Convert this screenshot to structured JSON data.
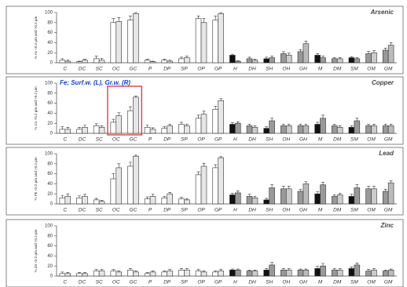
{
  "chart_data": [
    {
      "type": "bar",
      "title": "Arsenic",
      "y_label": "% As <0.2 µm and >0.2 µm",
      "categories": [
        "C",
        "DC",
        "SC",
        "OC",
        "GC",
        "P",
        "DP",
        "SP",
        "OP",
        "GP",
        "H",
        "DH",
        "SH",
        "OH",
        "GH",
        "M",
        "DM",
        "SM",
        "OM",
        "GM"
      ],
      "ylim": [
        0,
        100
      ],
      "yticks": [
        0,
        20,
        40,
        60,
        80,
        100
      ],
      "series": [
        {
          "colors": [
            "#ffffff",
            "#ffffff",
            "#ffffff",
            "#ffffff",
            "#ffffff",
            "#ffffff",
            "#ffffff",
            "#ffffff",
            "#ffffff",
            "#ffffff",
            "#111111",
            "#999999",
            "#111111",
            "#999999",
            "#999999",
            "#111111",
            "#999999",
            "#111111",
            "#999999",
            "#999999"
          ],
          "values": [
            5,
            2,
            8,
            80,
            85,
            5,
            5,
            8,
            88,
            85,
            15,
            8,
            8,
            18,
            22,
            15,
            8,
            10,
            18,
            25
          ],
          "errors": [
            3,
            1,
            5,
            8,
            8,
            2,
            2,
            3,
            5,
            8,
            2,
            3,
            3,
            4,
            4,
            3,
            2,
            2,
            5,
            4
          ]
        },
        {
          "colors": [
            "#e6e6e6",
            "#e6e6e6",
            "#e6e6e6",
            "#e6e6e6",
            "#e6e6e6",
            "#e6e6e6",
            "#e6e6e6",
            "#e6e6e6",
            "#e6e6e6",
            "#e6e6e6",
            "#999999",
            "#cccccc",
            "#999999",
            "#cccccc",
            "#bbbbbb",
            "#999999",
            "#cccccc",
            "#999999",
            "#cccccc",
            "#bbbbbb"
          ],
          "values": [
            3,
            5,
            5,
            82,
            98,
            2,
            3,
            10,
            80,
            98,
            3,
            5,
            10,
            15,
            38,
            10,
            8,
            8,
            20,
            35
          ],
          "errors": [
            2,
            2,
            4,
            8,
            2,
            1,
            2,
            3,
            8,
            2,
            1,
            2,
            3,
            4,
            5,
            3,
            2,
            2,
            4,
            5
          ]
        }
      ]
    },
    {
      "type": "bar",
      "title": "Copper",
      "y_label": "% Cu <0.2 µm and >0.2 µm",
      "annotation": "Fe; Surf.w. (L), Gr.w. (R)",
      "categories": [
        "C",
        "DC",
        "SC",
        "OC",
        "GC",
        "P",
        "DP",
        "SP",
        "OP",
        "GP",
        "H",
        "DH",
        "SH",
        "OH",
        "GH",
        "M",
        "DM",
        "SM",
        "OM",
        "GM"
      ],
      "ylim": [
        0,
        100
      ],
      "yticks": [
        0,
        20,
        40,
        60,
        80,
        100
      ],
      "series": [
        {
          "colors": [
            "#ffffff",
            "#ffffff",
            "#ffffff",
            "#ffffff",
            "#ffffff",
            "#ffffff",
            "#ffffff",
            "#ffffff",
            "#ffffff",
            "#ffffff",
            "#111111",
            "#999999",
            "#111111",
            "#999999",
            "#999999",
            "#111111",
            "#999999",
            "#111111",
            "#999999",
            "#999999"
          ],
          "values": [
            8,
            8,
            15,
            22,
            45,
            12,
            10,
            18,
            30,
            48,
            18,
            15,
            10,
            15,
            15,
            18,
            15,
            12,
            15,
            15
          ],
          "errors": [
            5,
            4,
            4,
            6,
            8,
            4,
            3,
            4,
            6,
            6,
            3,
            3,
            3,
            3,
            3,
            4,
            3,
            3,
            3,
            3
          ]
        },
        {
          "colors": [
            "#e6e6e6",
            "#e6e6e6",
            "#e6e6e6",
            "#e6e6e6",
            "#e6e6e6",
            "#e6e6e6",
            "#e6e6e6",
            "#e6e6e6",
            "#e6e6e6",
            "#e6e6e6",
            "#999999",
            "#cccccc",
            "#999999",
            "#cccccc",
            "#bbbbbb",
            "#999999",
            "#cccccc",
            "#999999",
            "#cccccc",
            "#bbbbbb"
          ],
          "values": [
            8,
            12,
            12,
            35,
            72,
            8,
            15,
            15,
            38,
            65,
            20,
            12,
            25,
            15,
            15,
            30,
            12,
            25,
            15,
            15
          ],
          "errors": [
            4,
            4,
            3,
            6,
            2,
            3,
            3,
            3,
            6,
            4,
            3,
            3,
            5,
            3,
            3,
            6,
            3,
            5,
            3,
            3
          ]
        }
      ]
    },
    {
      "type": "bar",
      "title": "Lead",
      "y_label": "% Pb <0.2 µm and >0.2 µm",
      "categories": [
        "C",
        "DC",
        "SC",
        "OC",
        "GC",
        "P",
        "DP",
        "SP",
        "OP",
        "GP",
        "H",
        "DH",
        "SH",
        "OH",
        "GH",
        "M",
        "DM",
        "SM",
        "OM",
        "GM"
      ],
      "ylim": [
        0,
        100
      ],
      "yticks": [
        0,
        20,
        40,
        60,
        80,
        100
      ],
      "series": [
        {
          "colors": [
            "#ffffff",
            "#ffffff",
            "#ffffff",
            "#ffffff",
            "#ffffff",
            "#ffffff",
            "#ffffff",
            "#ffffff",
            "#ffffff",
            "#ffffff",
            "#111111",
            "#999999",
            "#111111",
            "#999999",
            "#999999",
            "#111111",
            "#999999",
            "#111111",
            "#999999",
            "#999999"
          ],
          "values": [
            12,
            12,
            8,
            50,
            75,
            10,
            12,
            10,
            58,
            72,
            18,
            15,
            8,
            30,
            25,
            20,
            15,
            15,
            30,
            25
          ],
          "errors": [
            5,
            4,
            3,
            10,
            8,
            4,
            3,
            3,
            6,
            6,
            3,
            4,
            3,
            5,
            4,
            4,
            3,
            4,
            5,
            4
          ]
        },
        {
          "colors": [
            "#e6e6e6",
            "#e6e6e6",
            "#e6e6e6",
            "#e6e6e6",
            "#e6e6e6",
            "#e6e6e6",
            "#e6e6e6",
            "#e6e6e6",
            "#e6e6e6",
            "#e6e6e6",
            "#999999",
            "#cccccc",
            "#999999",
            "#cccccc",
            "#bbbbbb",
            "#999999",
            "#cccccc",
            "#999999",
            "#cccccc",
            "#bbbbbb"
          ],
          "values": [
            15,
            15,
            5,
            72,
            95,
            15,
            20,
            8,
            75,
            92,
            22,
            12,
            32,
            30,
            40,
            38,
            18,
            32,
            30,
            42
          ],
          "errors": [
            5,
            4,
            2,
            8,
            2,
            4,
            3,
            2,
            6,
            2,
            4,
            3,
            6,
            5,
            4,
            5,
            3,
            6,
            5,
            4
          ]
        }
      ]
    },
    {
      "type": "bar",
      "title": "Zinc",
      "y_label": "% Zn <0.2 µm and >0.2 µm",
      "categories": [
        "C",
        "DC",
        "SC",
        "OC",
        "GC",
        "P",
        "DP",
        "SP",
        "OP",
        "GP",
        "H",
        "DH",
        "SH",
        "OH",
        "GH",
        "M",
        "DM",
        "SM",
        "OM",
        "GM"
      ],
      "ylim": [
        0,
        100
      ],
      "yticks": [
        0,
        20,
        40,
        60,
        80,
        100
      ],
      "series": [
        {
          "colors": [
            "#ffffff",
            "#ffffff",
            "#ffffff",
            "#ffffff",
            "#ffffff",
            "#ffffff",
            "#ffffff",
            "#ffffff",
            "#ffffff",
            "#ffffff",
            "#111111",
            "#999999",
            "#111111",
            "#999999",
            "#999999",
            "#111111",
            "#999999",
            "#111111",
            "#999999",
            "#999999"
          ],
          "values": [
            5,
            5,
            10,
            10,
            12,
            5,
            8,
            12,
            10,
            8,
            12,
            10,
            12,
            12,
            12,
            15,
            12,
            15,
            10,
            10
          ],
          "errors": [
            3,
            2,
            3,
            3,
            3,
            2,
            2,
            3,
            3,
            2,
            2,
            2,
            3,
            3,
            2,
            4,
            3,
            3,
            3,
            2
          ]
        },
        {
          "colors": [
            "#e6e6e6",
            "#e6e6e6",
            "#e6e6e6",
            "#e6e6e6",
            "#e6e6e6",
            "#e6e6e6",
            "#e6e6e6",
            "#e6e6e6",
            "#e6e6e6",
            "#e6e6e6",
            "#999999",
            "#cccccc",
            "#999999",
            "#cccccc",
            "#bbbbbb",
            "#999999",
            "#cccccc",
            "#999999",
            "#cccccc",
            "#bbbbbb"
          ],
          "values": [
            5,
            5,
            10,
            8,
            8,
            8,
            10,
            12,
            8,
            10,
            12,
            10,
            22,
            12,
            12,
            20,
            12,
            22,
            12,
            12
          ],
          "errors": [
            2,
            2,
            3,
            2,
            2,
            2,
            3,
            3,
            2,
            3,
            2,
            2,
            5,
            3,
            2,
            5,
            3,
            4,
            3,
            2
          ]
        }
      ]
    }
  ]
}
